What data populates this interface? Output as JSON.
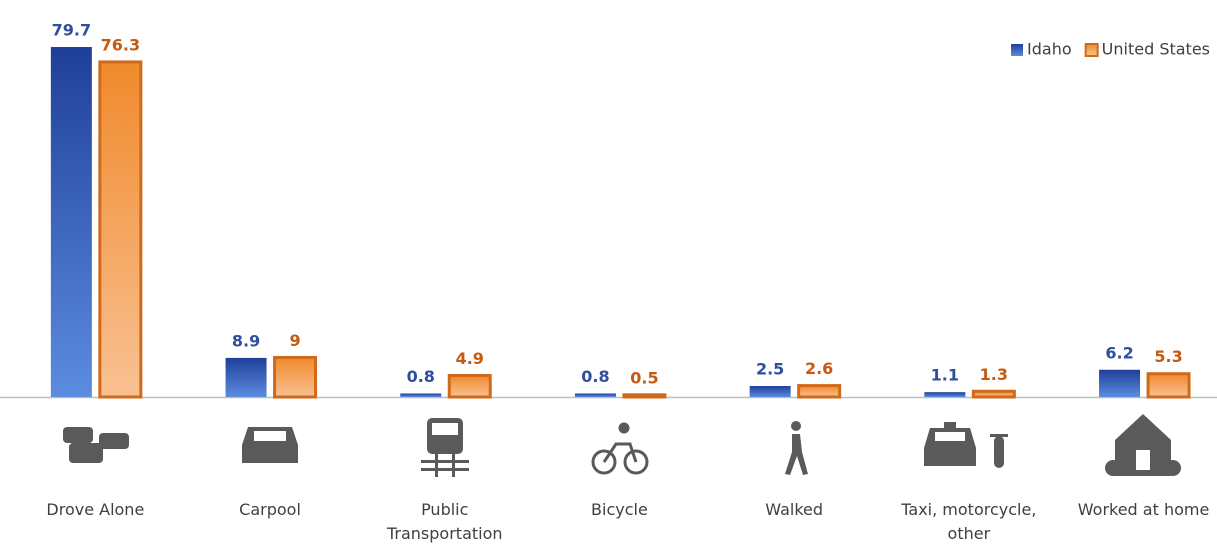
{
  "chart_data": {
    "type": "bar",
    "categories": [
      "Drove Alone",
      "Carpool",
      "Public Transportation",
      "Bicycle",
      "Walked",
      "Taxi, motorcycle, other",
      "Worked at home"
    ],
    "series": [
      {
        "name": "Idaho",
        "color": "#2f4e9e",
        "values": [
          79.7,
          8.9,
          0.8,
          0.8,
          2.5,
          1.1,
          6.2
        ]
      },
      {
        "name": "United States",
        "color": "#c55a11",
        "values": [
          76.3,
          9,
          4.9,
          0.5,
          2.6,
          1.3,
          5.3
        ]
      }
    ],
    "ylim": [
      0,
      80
    ],
    "legend": "top-right"
  }
}
